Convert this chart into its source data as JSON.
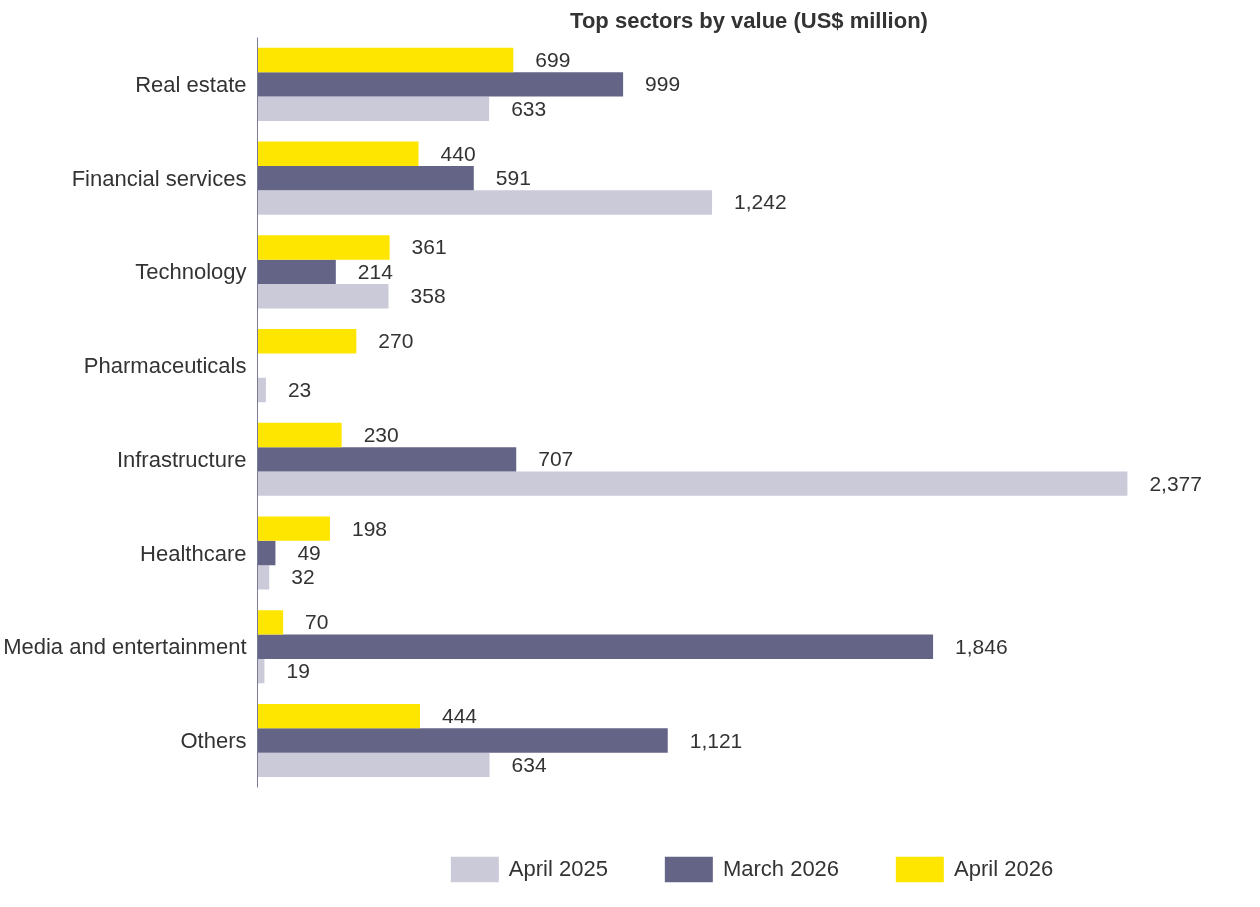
{
  "chart_data": {
    "type": "bar",
    "orientation": "horizontal",
    "title": "Top sectors by value (US$ million)",
    "categories": [
      "Real estate",
      "Financial services",
      "Technology",
      "Pharmaceuticals",
      "Infrastructure",
      "Healthcare",
      "Media and entertainment",
      "Others"
    ],
    "series": [
      {
        "name": "April 2025",
        "color": "#cbcad9",
        "values": [
          633,
          1242,
          358,
          23,
          2377,
          32,
          19,
          634
        ],
        "value_labels": [
          "633",
          "1,242",
          "358",
          "23",
          "2,377",
          "32",
          "19",
          "634"
        ]
      },
      {
        "name": "March 2026",
        "color": "#646487",
        "values": [
          999,
          591,
          214,
          null,
          707,
          49,
          1846,
          1121
        ],
        "value_labels": [
          "999",
          "591",
          "214",
          null,
          "707",
          "49",
          "1,846",
          "1,121"
        ]
      },
      {
        "name": "April 2026",
        "color": "#ffe600",
        "values": [
          699,
          440,
          361,
          270,
          230,
          198,
          70,
          444
        ],
        "value_labels": [
          "699",
          "440",
          "361",
          "270",
          "230",
          "198",
          "70",
          "444"
        ]
      }
    ],
    "legend": "bottom",
    "grid": false
  }
}
